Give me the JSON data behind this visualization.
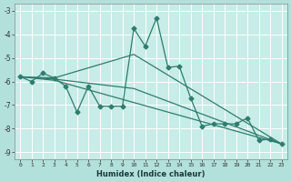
{
  "xlabel": "Humidex (Indice chaleur)",
  "background_color": "#b2e0db",
  "plot_bg_color": "#c8ece8",
  "line_color": "#2e7d6e",
  "grid_color": "#ffffff",
  "xlim": [
    -0.5,
    23.5
  ],
  "ylim": [
    -9.3,
    -2.7
  ],
  "yticks": [
    -9,
    -8,
    -7,
    -6,
    -5,
    -4,
    -3
  ],
  "xticks": [
    0,
    1,
    2,
    3,
    4,
    5,
    6,
    7,
    8,
    9,
    10,
    11,
    12,
    13,
    14,
    15,
    16,
    17,
    18,
    19,
    20,
    21,
    22,
    23
  ],
  "series_main": [
    [
      0,
      -5.8
    ],
    [
      1,
      -6.0
    ],
    [
      2,
      -5.65
    ],
    [
      3,
      -5.85
    ],
    [
      4,
      -6.2
    ],
    [
      5,
      -7.3
    ],
    [
      6,
      -6.2
    ],
    [
      7,
      -7.05
    ],
    [
      8,
      -7.05
    ],
    [
      9,
      -7.05
    ],
    [
      10,
      -3.75
    ],
    [
      11,
      -4.5
    ],
    [
      12,
      -3.3
    ],
    [
      13,
      -5.4
    ],
    [
      14,
      -5.35
    ],
    [
      15,
      -6.7
    ],
    [
      16,
      -7.9
    ],
    [
      17,
      -7.8
    ],
    [
      18,
      -7.8
    ],
    [
      19,
      -7.8
    ],
    [
      20,
      -7.55
    ],
    [
      21,
      -8.5
    ],
    [
      22,
      -8.45
    ],
    [
      23,
      -8.65
    ]
  ],
  "series_trend1": [
    [
      0,
      -5.8
    ],
    [
      3,
      -5.85
    ],
    [
      10,
      -4.85
    ],
    [
      23,
      -8.65
    ]
  ],
  "series_trend2": [
    [
      0,
      -5.8
    ],
    [
      3,
      -5.9
    ],
    [
      10,
      -6.3
    ],
    [
      23,
      -8.65
    ]
  ],
  "series_trend3": [
    [
      0,
      -5.8
    ],
    [
      3,
      -5.95
    ],
    [
      23,
      -8.65
    ]
  ]
}
